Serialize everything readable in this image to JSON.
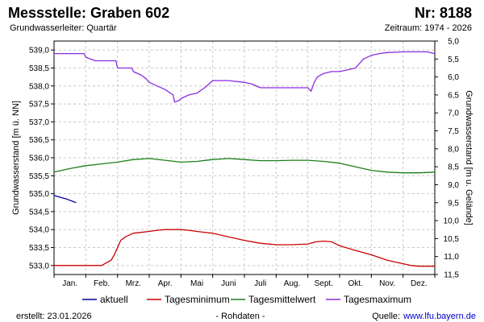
{
  "header": {
    "title": "Messstelle: Graben 602",
    "number": "Nr: 8188",
    "subtitle": "Grundwasserleiter: Quartär",
    "period": "Zeitraum: 1974 - 2026"
  },
  "footer": {
    "created": "erstellt:  23.01.2026",
    "raw": "- Rohdaten -",
    "source_label": "Quelle:",
    "source_link": "www.lfu.bayern.de"
  },
  "colors": {
    "aktuell": "#000099",
    "Tagesminimum": "#cc0000",
    "Tagesmittelwert": "#1a7f1a",
    "Tagesmaximum": "#8b2be2",
    "grid": "#c8c8c8",
    "link": "#0000cc"
  },
  "chart_data": {
    "type": "line",
    "xlabel": "",
    "ylabel": "Grundwasserstand [m ü. NN]",
    "ylabel_right": "Grundwasserstand [m u. Gelände]",
    "x_domain": [
      0,
      12
    ],
    "ylim": [
      532.75,
      539.25
    ],
    "yticks": [
      "533,0",
      "533,5",
      "534,0",
      "534,5",
      "535,0",
      "535,5",
      "536,0",
      "536,5",
      "537,0",
      "537,5",
      "538,0",
      "538,5",
      "539,0"
    ],
    "ylim_right": [
      11.5,
      5.0
    ],
    "yticks_right": [
      "5,0",
      "5,5",
      "6,0",
      "6,5",
      "7,0",
      "7,5",
      "8,0",
      "8,5",
      "9,0",
      "9,5",
      "10,0",
      "10,5",
      "11,0",
      "11,5"
    ],
    "month_labels": [
      "Jan.",
      "Feb.",
      "Mrz.",
      "Apr.",
      "Mai",
      "Juni",
      "Juli",
      "Aug.",
      "Sept.",
      "Okt.",
      "Nov.",
      "Dez."
    ],
    "grid": true,
    "legend_position": "bottom",
    "series": [
      {
        "name": "aktuell",
        "x": [
          0,
          0.2,
          0.4,
          0.55,
          0.7
        ],
        "y": [
          534.95,
          534.9,
          534.85,
          534.8,
          534.75
        ]
      },
      {
        "name": "Tagesminimum",
        "x": [
          0,
          1.0,
          1.5,
          1.6,
          1.8,
          1.9,
          2.0,
          2.1,
          2.25,
          2.5,
          3.0,
          3.25,
          3.5,
          4.0,
          4.25,
          4.5,
          5.0,
          5.5,
          6.0,
          6.5,
          7.0,
          7.5,
          8.0,
          8.25,
          8.5,
          8.75,
          9.0,
          9.5,
          10.0,
          10.5,
          11.0,
          11.25,
          11.5,
          12.0
        ],
        "y": [
          533.0,
          533.0,
          533.0,
          533.05,
          533.15,
          533.3,
          533.5,
          533.7,
          533.8,
          533.9,
          533.95,
          533.98,
          534.0,
          534.0,
          533.98,
          533.95,
          533.9,
          533.8,
          533.7,
          533.62,
          533.58,
          533.58,
          533.6,
          533.66,
          533.68,
          533.66,
          533.55,
          533.42,
          533.3,
          533.15,
          533.05,
          533.0,
          532.98,
          532.98
        ]
      },
      {
        "name": "Tagesmittelwert",
        "x": [
          0,
          0.5,
          1.0,
          1.5,
          2.0,
          2.5,
          3.0,
          3.5,
          4.0,
          4.5,
          5.0,
          5.5,
          6.0,
          6.5,
          7.0,
          7.5,
          8.0,
          8.5,
          9.0,
          9.5,
          10.0,
          10.5,
          11.0,
          11.5,
          12.0
        ],
        "y": [
          535.6,
          535.7,
          535.78,
          535.83,
          535.88,
          535.95,
          535.98,
          535.93,
          535.88,
          535.9,
          535.95,
          535.98,
          535.95,
          535.92,
          535.92,
          535.93,
          535.93,
          535.9,
          535.85,
          535.75,
          535.65,
          535.6,
          535.58,
          535.58,
          535.6
        ]
      },
      {
        "name": "Tagesmaximum",
        "x": [
          0,
          0.5,
          0.95,
          1.0,
          1.3,
          1.95,
          2.0,
          2.45,
          2.5,
          2.75,
          2.9,
          3.0,
          3.25,
          3.5,
          3.75,
          3.8,
          3.95,
          4.0,
          4.25,
          4.5,
          4.75,
          5.0,
          5.25,
          5.5,
          6.0,
          6.25,
          6.5,
          7.0,
          7.5,
          8.0,
          8.1,
          8.2,
          8.3,
          8.5,
          8.75,
          9.0,
          9.25,
          9.5,
          9.75,
          10.0,
          10.25,
          10.5,
          11.0,
          11.5,
          11.75,
          12.0
        ],
        "y": [
          538.9,
          538.9,
          538.9,
          538.8,
          538.7,
          538.7,
          538.5,
          538.5,
          538.4,
          538.3,
          538.2,
          538.1,
          538.0,
          537.9,
          537.75,
          537.55,
          537.6,
          537.65,
          537.75,
          537.8,
          537.95,
          538.15,
          538.15,
          538.15,
          538.1,
          538.05,
          537.95,
          537.95,
          537.95,
          537.95,
          537.85,
          538.1,
          538.25,
          538.35,
          538.4,
          538.4,
          538.45,
          538.5,
          538.75,
          538.85,
          538.9,
          538.93,
          538.95,
          538.95,
          538.95,
          538.9
        ]
      }
    ]
  }
}
